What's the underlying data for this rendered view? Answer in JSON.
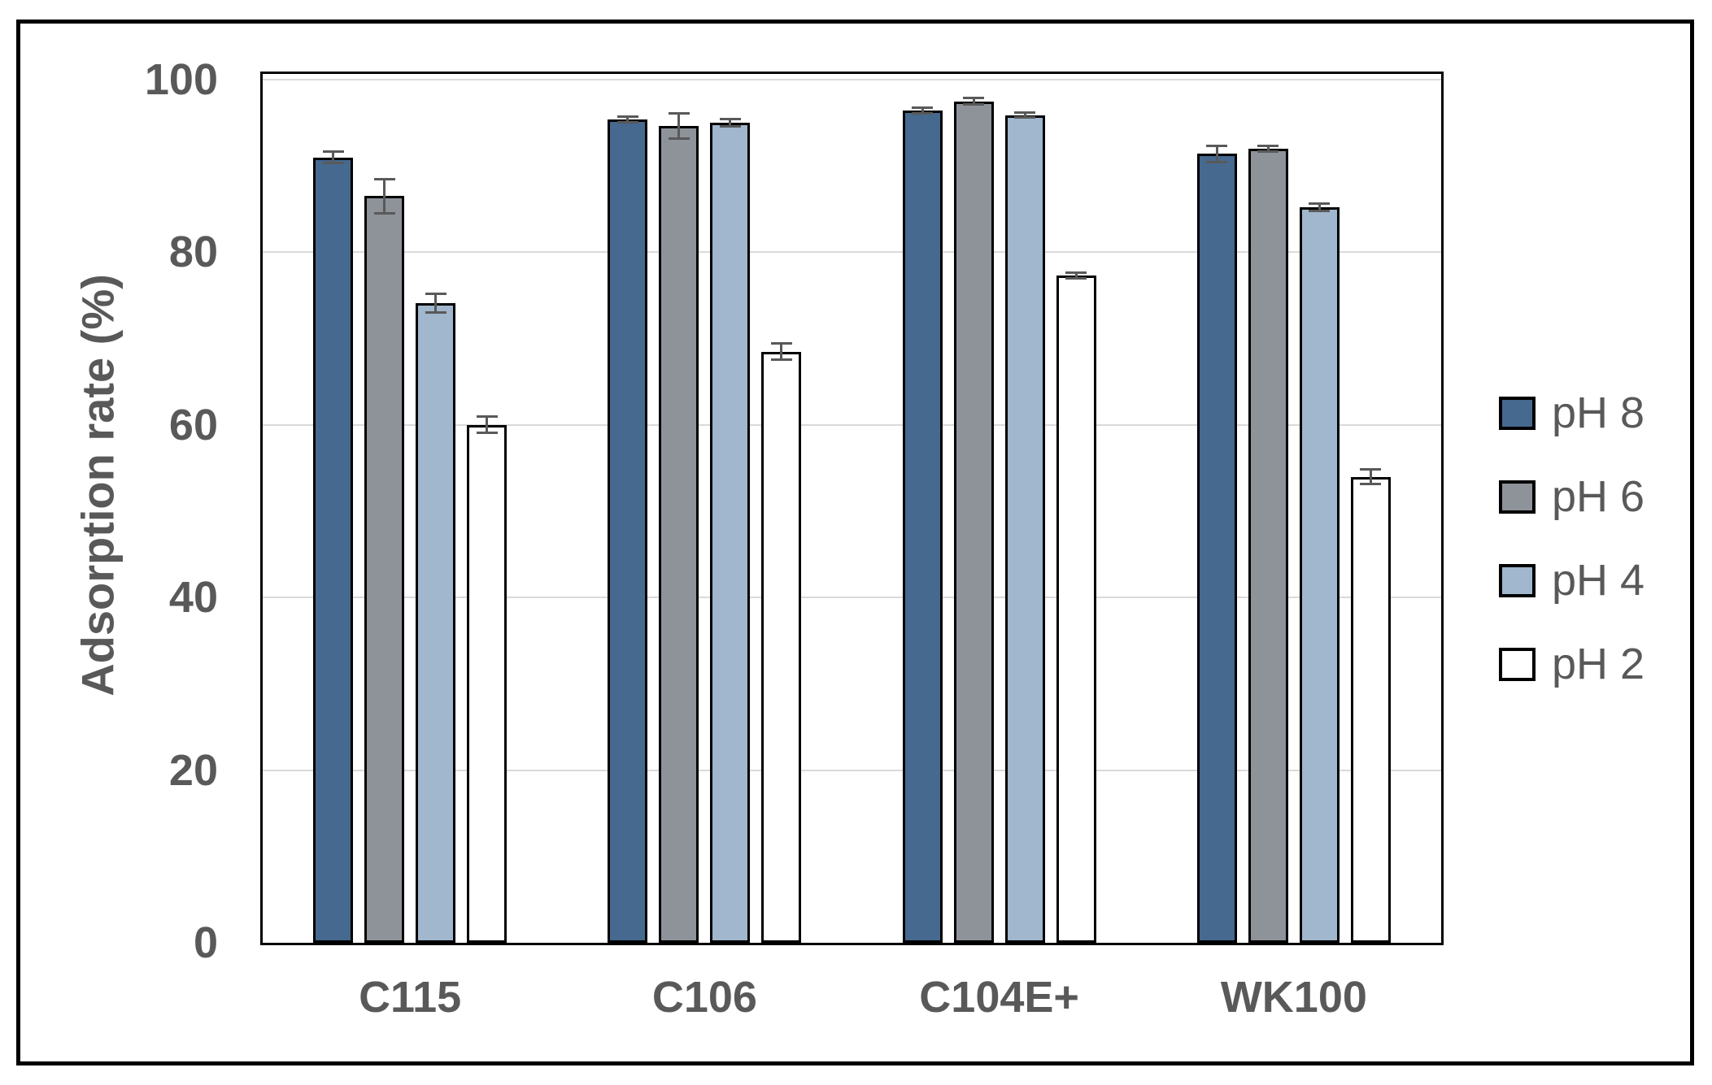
{
  "chart_data": {
    "type": "bar",
    "title": "",
    "ylabel": "Adsorption rate (%)",
    "xlabel": "",
    "categories": [
      "C115",
      "C106",
      "C104E+",
      "WK100"
    ],
    "series": [
      {
        "name": "pH 8",
        "color": "#46698F",
        "values": [
          91.0,
          95.4,
          96.4,
          91.4
        ],
        "errors": [
          0.7,
          0.4,
          0.4,
          1.0
        ]
      },
      {
        "name": "pH 6",
        "color": "#8E939A",
        "values": [
          86.5,
          94.6,
          97.5,
          92.0
        ],
        "errors": [
          2.0,
          1.5,
          0.4,
          0.4
        ]
      },
      {
        "name": "pH 4",
        "color": "#A0B7CD",
        "values": [
          74.1,
          95.0,
          95.9,
          85.2
        ],
        "errors": [
          1.1,
          0.5,
          0.3,
          0.5
        ]
      },
      {
        "name": "pH 2",
        "color": "#FFFFFF",
        "values": [
          60.0,
          68.5,
          77.3,
          54.0
        ],
        "errors": [
          1.0,
          1.0,
          0.4,
          0.9
        ]
      }
    ],
    "ylim": [
      0,
      100
    ],
    "yticks": [
      0,
      20,
      40,
      60,
      80,
      100
    ],
    "grid": "horizontal",
    "legend_position": "right-outside",
    "error_bars": true,
    "colors": {
      "bar_outline": "#000000",
      "gridline": "#D9D9D9",
      "text": "#595959",
      "error_bar": "#595959",
      "frame": "#000000"
    }
  }
}
